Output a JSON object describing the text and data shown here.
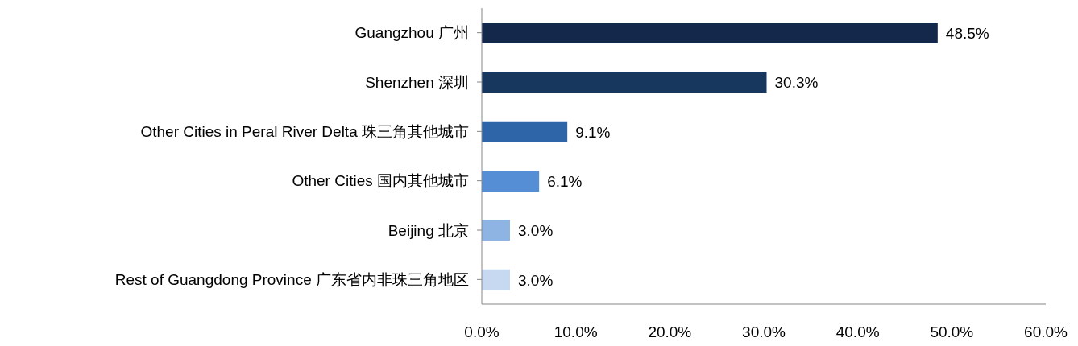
{
  "chart_data": {
    "type": "bar",
    "orientation": "horizontal",
    "categories": [
      "Guangzhou 广州",
      "Shenzhen 深圳",
      "Other Cities in Peral River Delta 珠三角其他城市",
      "Other Cities 国内其他城市",
      "Beijing 北京",
      "Rest of Guangdong Province 广东省内非珠三角地区"
    ],
    "values": [
      48.5,
      30.3,
      9.1,
      6.1,
      3.0,
      3.0
    ],
    "colors": [
      "#14284b",
      "#17375e",
      "#2e64a8",
      "#558ed5",
      "#8db4e2",
      "#c6d9f1"
    ],
    "value_labels": [
      "48.5%",
      "30.3%",
      "9.1%",
      "6.1%",
      "3.0%",
      "3.0%"
    ],
    "xlim": [
      0,
      60
    ],
    "xticks": [
      {
        "value": 0,
        "label": "0.0%"
      },
      {
        "value": 10,
        "label": "10.0%"
      },
      {
        "value": 20,
        "label": "20.0%"
      },
      {
        "value": 30,
        "label": "30.0%"
      },
      {
        "value": 40,
        "label": "40.0%"
      },
      {
        "value": 50,
        "label": "50.0%"
      },
      {
        "value": 60,
        "label": "60.0%"
      }
    ],
    "grid": false,
    "legend": false
  }
}
